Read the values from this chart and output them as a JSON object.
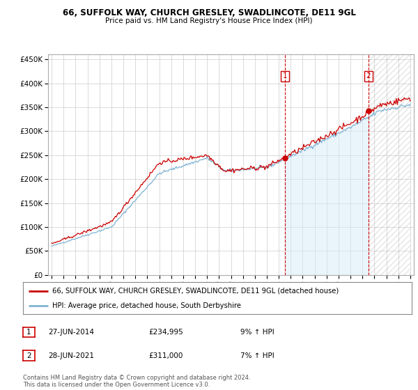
{
  "title_line1": "66, SUFFOLK WAY, CHURCH GRESLEY, SWADLINCOTE, DE11 9GL",
  "title_line2": "Price paid vs. HM Land Registry's House Price Index (HPI)",
  "legend_label1": "66, SUFFOLK WAY, CHURCH GRESLEY, SWADLINCOTE, DE11 9GL (detached house)",
  "legend_label2": "HPI: Average price, detached house, South Derbyshire",
  "sale1_date": "27-JUN-2014",
  "sale1_price": "£234,995",
  "sale1_hpi": "9% ↑ HPI",
  "sale2_date": "28-JUN-2021",
  "sale2_price": "£311,000",
  "sale2_hpi": "7% ↑ HPI",
  "footer": "Contains HM Land Registry data © Crown copyright and database right 2024.\nThis data is licensed under the Open Government Licence v3.0.",
  "red_line_color": "#cc0000",
  "blue_line_color": "#7fb3d3",
  "blue_fill_color": "#d6eaf8",
  "sale1_x": 2014.5,
  "sale2_x": 2021.5,
  "ylim_min": 0,
  "ylim_max": 460000,
  "xlim_min": 1994.7,
  "xlim_max": 2025.3,
  "grid_color": "#cccccc",
  "background_color": "#ffffff"
}
